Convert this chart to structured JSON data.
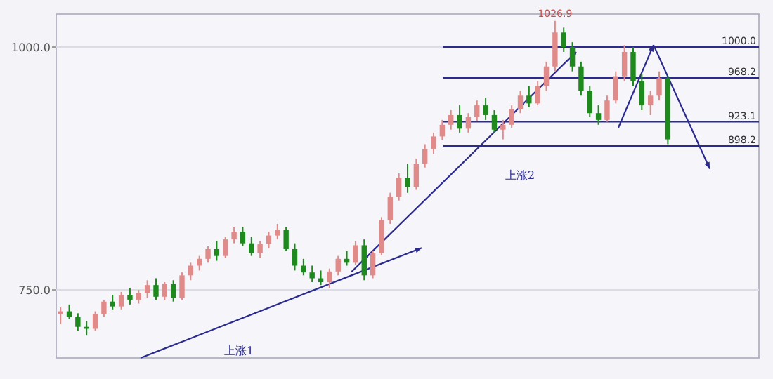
{
  "chart_data": {
    "type": "candlestick",
    "categories": [
      null,
      null,
      null,
      null,
      null,
      null,
      null,
      null,
      null,
      null,
      null,
      null,
      null,
      null,
      null,
      null,
      null,
      null,
      null,
      null,
      null,
      null,
      null,
      null,
      null,
      null,
      null,
      null,
      null,
      null,
      null,
      null,
      null,
      null,
      null,
      null,
      null,
      null,
      null,
      null,
      null,
      null,
      null,
      null,
      null,
      null,
      null,
      null,
      null,
      null,
      null,
      null,
      null,
      null,
      null,
      null,
      null,
      null,
      null,
      null,
      null,
      null,
      null,
      null,
      null,
      null,
      null,
      null,
      null,
      null,
      null
    ],
    "ohlc": [
      [
        725,
        732,
        715,
        728
      ],
      [
        728,
        735,
        720,
        722
      ],
      [
        722,
        726,
        708,
        712
      ],
      [
        712,
        718,
        703,
        710
      ],
      [
        710,
        728,
        708,
        725
      ],
      [
        725,
        740,
        722,
        738
      ],
      [
        738,
        745,
        730,
        733
      ],
      [
        733,
        748,
        730,
        745
      ],
      [
        745,
        752,
        735,
        740
      ],
      [
        740,
        750,
        736,
        747
      ],
      [
        747,
        760,
        742,
        755
      ],
      [
        755,
        762,
        740,
        743
      ],
      [
        743,
        758,
        740,
        756
      ],
      [
        756,
        760,
        738,
        742
      ],
      [
        742,
        768,
        740,
        765
      ],
      [
        765,
        778,
        760,
        775
      ],
      [
        775,
        785,
        770,
        782
      ],
      [
        782,
        795,
        778,
        792
      ],
      [
        792,
        800,
        780,
        785
      ],
      [
        785,
        805,
        783,
        802
      ],
      [
        802,
        815,
        798,
        810
      ],
      [
        810,
        815,
        795,
        798
      ],
      [
        798,
        805,
        785,
        788
      ],
      [
        788,
        800,
        783,
        797
      ],
      [
        797,
        810,
        793,
        806
      ],
      [
        806,
        818,
        802,
        812
      ],
      [
        812,
        815,
        790,
        792
      ],
      [
        792,
        798,
        770,
        775
      ],
      [
        775,
        782,
        765,
        768
      ],
      [
        768,
        775,
        758,
        762
      ],
      [
        762,
        770,
        755,
        758
      ],
      [
        758,
        772,
        752,
        769
      ],
      [
        769,
        785,
        765,
        782
      ],
      [
        782,
        790,
        775,
        778
      ],
      [
        778,
        800,
        776,
        796
      ],
      [
        796,
        802,
        760,
        765
      ],
      [
        765,
        790,
        762,
        788
      ],
      [
        788,
        825,
        786,
        822
      ],
      [
        822,
        850,
        818,
        846
      ],
      [
        846,
        870,
        842,
        865
      ],
      [
        865,
        880,
        850,
        856
      ],
      [
        856,
        885,
        853,
        880
      ],
      [
        880,
        900,
        876,
        895
      ],
      [
        895,
        912,
        890,
        908
      ],
      [
        908,
        925,
        904,
        920
      ],
      [
        920,
        935,
        915,
        930
      ],
      [
        930,
        940,
        912,
        916
      ],
      [
        916,
        932,
        912,
        928
      ],
      [
        928,
        945,
        924,
        940
      ],
      [
        940,
        948,
        925,
        930
      ],
      [
        930,
        935,
        912,
        915
      ],
      [
        915,
        925,
        905,
        920
      ],
      [
        920,
        940,
        917,
        936
      ],
      [
        936,
        955,
        932,
        950
      ],
      [
        950,
        960,
        938,
        942
      ],
      [
        942,
        965,
        940,
        960
      ],
      [
        960,
        985,
        955,
        980
      ],
      [
        980,
        1026.9,
        975,
        1015
      ],
      [
        1015,
        1020,
        995,
        1000
      ],
      [
        1000,
        1005,
        975,
        980
      ],
      [
        980,
        985,
        950,
        955
      ],
      [
        955,
        960,
        928,
        932
      ],
      [
        932,
        940,
        920,
        925
      ],
      [
        925,
        950,
        923,
        945
      ],
      [
        945,
        975,
        942,
        970
      ],
      [
        970,
        1002,
        965,
        995
      ],
      [
        995,
        1000,
        960,
        965
      ],
      [
        965,
        972,
        935,
        940
      ],
      [
        940,
        955,
        930,
        950
      ],
      [
        950,
        975,
        945,
        968
      ],
      [
        968,
        970,
        900,
        905
      ]
    ],
    "ylim": [
      680,
      1034
    ],
    "yticks": [
      {
        "value": 750,
        "label": "750.0"
      },
      {
        "value": 1000,
        "label": "1000.0"
      }
    ],
    "tick_labels": "y",
    "ref_lines": [
      {
        "axis": "y",
        "value": 1000,
        "label": "1000.0",
        "color": "#2b2b8f"
      },
      {
        "axis": "y",
        "value": 968.2,
        "label": "968.2",
        "color": "#2b2b8f"
      },
      {
        "axis": "y",
        "value": 923.1,
        "label": "923.1",
        "color": "#2b2b8f"
      },
      {
        "axis": "y",
        "value": 898.2,
        "label": "898.2",
        "color": "#2b2b8f"
      }
    ],
    "annotations": [
      {
        "text": "1026.9",
        "y": 1026.9
      },
      "上涨1",
      "上涨2"
    ]
  }
}
